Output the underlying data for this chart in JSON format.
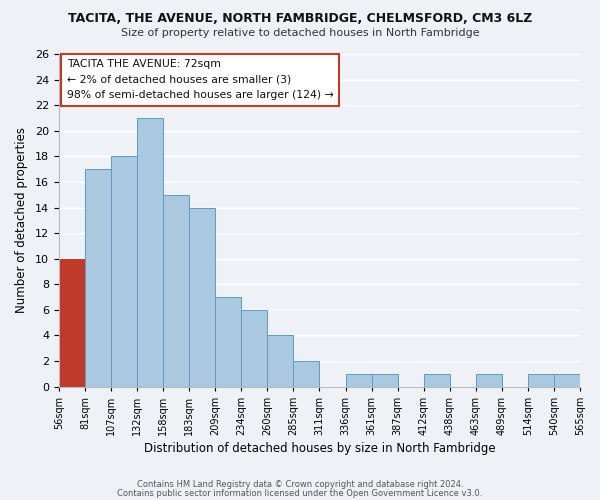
{
  "title": "TACITA, THE AVENUE, NORTH FAMBRIDGE, CHELMSFORD, CM3 6LZ",
  "subtitle": "Size of property relative to detached houses in North Fambridge",
  "xlabel": "Distribution of detached houses by size in North Fambridge",
  "ylabel": "Number of detached properties",
  "bin_labels": [
    "56sqm",
    "81sqm",
    "107sqm",
    "132sqm",
    "158sqm",
    "183sqm",
    "209sqm",
    "234sqm",
    "260sqm",
    "285sqm",
    "311sqm",
    "336sqm",
    "361sqm",
    "387sqm",
    "412sqm",
    "438sqm",
    "463sqm",
    "489sqm",
    "514sqm",
    "540sqm",
    "565sqm"
  ],
  "bar_values": [
    10,
    17,
    18,
    21,
    15,
    14,
    7,
    6,
    4,
    2,
    0,
    1,
    1,
    0,
    1,
    0,
    1,
    0,
    1,
    1
  ],
  "bar_colors": [
    "#c0392b",
    "#aac8e0",
    "#aac8e0",
    "#aac8e0",
    "#aac8e0",
    "#aac8e0",
    "#aac8e0",
    "#aac8e0",
    "#aac8e0",
    "#aac8e0",
    "#aac8e0",
    "#aac8e0",
    "#aac8e0",
    "#aac8e0",
    "#aac8e0",
    "#aac8e0",
    "#aac8e0",
    "#aac8e0",
    "#aac8e0",
    "#aac8e0"
  ],
  "ylim": [
    0,
    26
  ],
  "yticks": [
    0,
    2,
    4,
    6,
    8,
    10,
    12,
    14,
    16,
    18,
    20,
    22,
    24,
    26
  ],
  "annotation_title": "TACITA THE AVENUE: 72sqm",
  "annotation_line1": "← 2% of detached houses are smaller (3)",
  "annotation_line2": "98% of semi-detached houses are larger (124) →",
  "annotation_box_color": "#ffffff",
  "annotation_border_color": "#c0392b",
  "background_color": "#eef2f7",
  "grid_color": "#ffffff",
  "footer1": "Contains HM Land Registry data © Crown copyright and database right 2024.",
  "footer2": "Contains public sector information licensed under the Open Government Licence v3.0."
}
